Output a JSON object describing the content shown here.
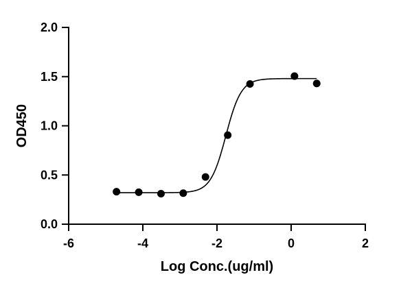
{
  "chart_data": {
    "type": "scatter",
    "xlabel": "Log Conc.(ug/ml)",
    "ylabel": "OD450",
    "xlim": [
      -6,
      2
    ],
    "ylim": [
      0,
      2
    ],
    "x_ticks": [
      -6,
      -4,
      -2,
      0,
      2
    ],
    "y_ticks": [
      0,
      0.5,
      1,
      1.5,
      2
    ],
    "x_tick_labels": [
      "-6",
      "-4",
      "-2",
      "0",
      "2"
    ],
    "y_tick_labels": [
      "0.0",
      "0.5",
      "1.0",
      "1.5",
      "2.0"
    ],
    "grid": false,
    "points": {
      "x": [
        -4.71,
        -4.11,
        -3.51,
        -2.91,
        -2.31,
        -1.71,
        -1.11,
        0.09,
        0.69
      ],
      "y": [
        0.33,
        0.325,
        0.31,
        0.315,
        0.48,
        0.905,
        1.425,
        1.505,
        1.43
      ]
    },
    "fit": {
      "model": "4PL sigmoid",
      "bottom": 0.32,
      "top": 1.48,
      "logEC50": -1.76,
      "hill": 2.1,
      "x_range": [
        -4.71,
        0.69
      ]
    },
    "colors": {
      "marker": "#000000",
      "line": "#000000",
      "axis": "#000000"
    }
  }
}
